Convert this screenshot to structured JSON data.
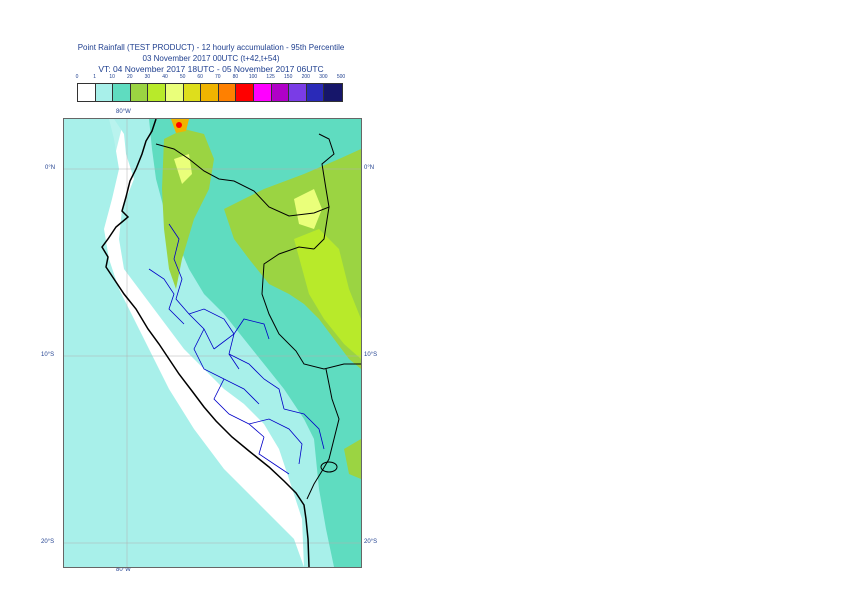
{
  "title": {
    "line1": "Point Rainfall (TEST PRODUCT) - 12 hourly accumulation - 95th Percentile",
    "line2": "03 November 2017 00UTC (t+42,t+54)",
    "line3": "VT: 04 November 2017 18UTC - 05 November 2017 06UTC"
  },
  "legend": {
    "thresholds": [
      "0",
      "1",
      "10",
      "20",
      "30",
      "40",
      "50",
      "60",
      "70",
      "80",
      "100",
      "125",
      "150",
      "200",
      "300",
      "500"
    ],
    "colors": [
      "#ffffff",
      "#a8f0ea",
      "#5fdcc0",
      "#9bd442",
      "#b8ea2a",
      "#eaff7a",
      "#dede1c",
      "#f0b400",
      "#ff8000",
      "#ff0000",
      "#ff00ff",
      "#b000c8",
      "#7a3ce6",
      "#2a2ab8",
      "#16166a"
    ]
  },
  "axes": {
    "top_lon": "80°W",
    "bottom_lon": "80°W",
    "left_lat_0": "0°N",
    "right_lat_0": "0°N",
    "left_lat_10": "10°S",
    "right_lat_10": "10°S",
    "left_lat_20": "20°S",
    "right_lat_20": "20°S"
  }
}
